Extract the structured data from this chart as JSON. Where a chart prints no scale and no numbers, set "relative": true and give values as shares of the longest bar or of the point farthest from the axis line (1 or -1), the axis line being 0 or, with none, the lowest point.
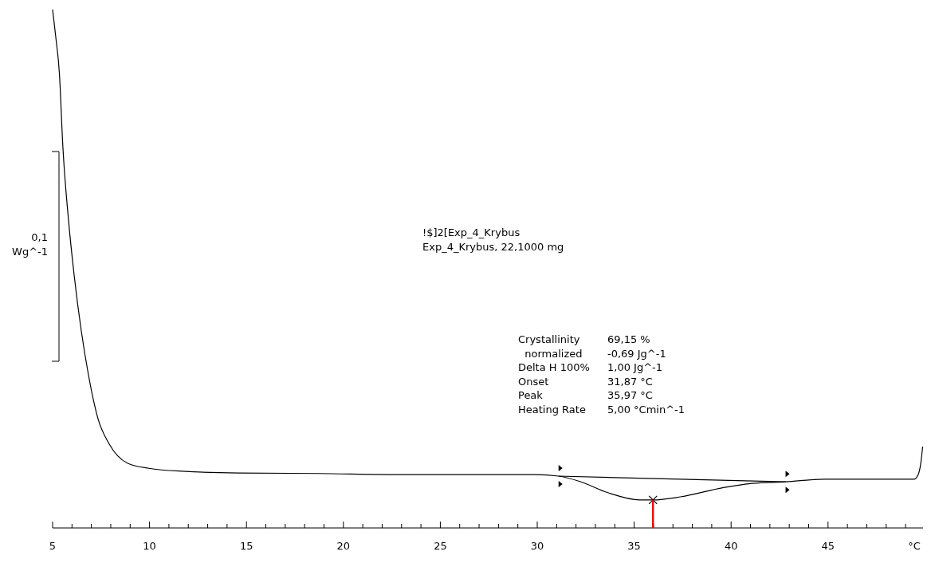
{
  "chart_data": {
    "type": "line",
    "relative": true,
    "ylabel": "0,1 Wg^-1",
    "xlabel": "°C",
    "xlim": [
      5,
      49.9
    ],
    "xticks": [
      5,
      {
        "value": 6,
        "label": null
      },
      {
        "value": 7,
        "label": null
      },
      {
        "value": 8,
        "label": null
      },
      {
        "value": 9,
        "label": null
      },
      10,
      {
        "value": 11,
        "label": null
      },
      {
        "value": 12,
        "label": null
      },
      {
        "value": 13,
        "label": null
      },
      {
        "value": 14,
        "label": null
      },
      15,
      {
        "value": 16,
        "label": null
      },
      {
        "value": 17,
        "label": null
      },
      {
        "value": 18,
        "label": null
      },
      {
        "value": 19,
        "label": null
      },
      20,
      {
        "value": 21,
        "label": null
      },
      {
        "value": 22,
        "label": null
      },
      {
        "value": 23,
        "label": null
      },
      {
        "value": 24,
        "label": null
      },
      25,
      {
        "value": 26,
        "label": null
      },
      {
        "value": 27,
        "label": null
      },
      {
        "value": 28,
        "label": null
      },
      {
        "value": 29,
        "label": null
      },
      30,
      {
        "value": 31,
        "label": null
      },
      {
        "value": 32,
        "label": null
      },
      {
        "value": 33,
        "label": null
      },
      {
        "value": 34,
        "label": null
      },
      35,
      {
        "value": 36,
        "label": null
      },
      {
        "value": 37,
        "label": null
      },
      {
        "value": 38,
        "label": null
      },
      {
        "value": 39,
        "label": null
      },
      40,
      {
        "value": 41,
        "label": null
      },
      {
        "value": 42,
        "label": null
      },
      {
        "value": 43,
        "label": null
      },
      {
        "value": 44,
        "label": null
      },
      45,
      {
        "value": 46,
        "label": null
      },
      {
        "value": 47,
        "label": null
      },
      {
        "value": 48,
        "label": null
      },
      {
        "value": 49,
        "label": null
      }
    ],
    "series": [
      {
        "color": "#000000",
        "x": [
          5.0,
          5.16,
          5.35,
          5.53,
          5.82,
          6.11,
          6.48,
          6.85,
          7.34,
          7.92,
          8.86,
          9.97,
          11.86,
          14.62,
          18.73,
          22.84,
          26.95,
          29.91,
          31.1,
          32.17,
          33.65,
          35.29,
          35.97,
          37.39,
          39.61,
          41.09,
          42.81,
          44.83,
          47.79,
          49.43,
          49.64,
          49.8,
          49.88
        ],
        "values": [
          1.0,
          0.948,
          0.877,
          0.735,
          0.594,
          0.488,
          0.38,
          0.295,
          0.211,
          0.162,
          0.125,
          0.115,
          0.109,
          0.106,
          0.105,
          0.103,
          0.103,
          0.103,
          0.1,
          0.09,
          0.068,
          0.054,
          0.054,
          0.06,
          0.078,
          0.086,
          0.089,
          0.094,
          0.094,
          0.094,
          0.102,
          0.129,
          0.157
        ]
      },
      {
        "type": "line",
        "color": "#000000",
        "x": [
          31.1,
          42.81
        ],
        "values": [
          0.1,
          0.089
        ]
      },
      {
        "type": "scatter",
        "marker": "cross",
        "color": "#000000",
        "x": [
          35.97
        ],
        "values": [
          0.054
        ]
      },
      {
        "type": "line",
        "color": "#ff0000",
        "x": [
          35.97,
          35.97
        ],
        "values": [
          0,
          0.054
        ]
      }
    ],
    "annotations": [
      "!$]2[Exp_4_Krybus",
      "Exp_4_Krybus, 22,1000 mg",
      "Crystallinity\t69,15 %",
      "  normalized\t-0,69 Jg^-1",
      "Delta H 100%\t1,00 Jg^-1",
      "Onset\t31,87 °C",
      "Peak\t35,97 °C",
      "Heating Rate\t5,00 °Cmin^-1"
    ]
  }
}
